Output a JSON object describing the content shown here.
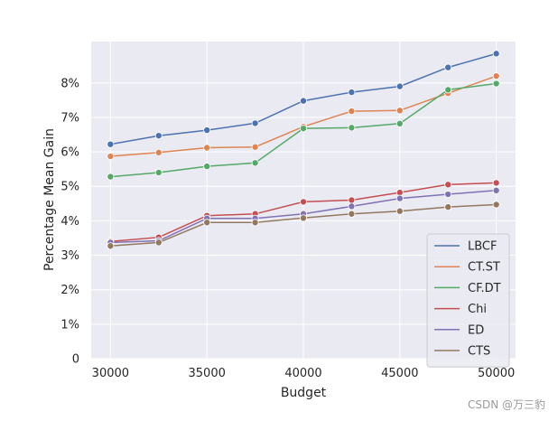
{
  "chart_data": {
    "type": "line",
    "xlabel": "Budget",
    "ylabel": "Percentage Mean Gain",
    "x": [
      30000,
      32500,
      35000,
      37500,
      40000,
      42500,
      45000,
      47500,
      50000
    ],
    "xticks": [
      "30000",
      "35000",
      "40000",
      "45000",
      "50000"
    ],
    "yticks": [
      "0",
      "1%",
      "2%",
      "3%",
      "4%",
      "5%",
      "6%",
      "7%",
      "8%"
    ],
    "xlim": [
      29000,
      51000
    ],
    "ylim": [
      0,
      9.2
    ],
    "grid": true,
    "legend_position": "lower-right",
    "series": [
      {
        "name": "LBCF",
        "color": "#4c72b0",
        "values": [
          6.22,
          6.47,
          6.63,
          6.83,
          7.48,
          7.73,
          7.9,
          8.45,
          8.85
        ]
      },
      {
        "name": "CT.ST",
        "color": "#dd8452",
        "values": [
          5.87,
          5.98,
          6.12,
          6.14,
          6.73,
          7.18,
          7.2,
          7.7,
          8.2
        ]
      },
      {
        "name": "CF.DT",
        "color": "#55a868",
        "values": [
          5.28,
          5.4,
          5.58,
          5.68,
          6.68,
          6.7,
          6.82,
          7.8,
          7.98
        ]
      },
      {
        "name": "Chi",
        "color": "#c44e52",
        "values": [
          3.4,
          3.52,
          4.15,
          4.2,
          4.55,
          4.6,
          4.82,
          5.05,
          5.1
        ]
      },
      {
        "name": "ED",
        "color": "#8172b3",
        "values": [
          3.37,
          3.42,
          4.07,
          4.07,
          4.2,
          4.42,
          4.65,
          4.77,
          4.88
        ]
      },
      {
        "name": "CTS",
        "color": "#937860",
        "values": [
          3.27,
          3.37,
          3.95,
          3.95,
          4.08,
          4.2,
          4.28,
          4.4,
          4.47
        ]
      }
    ]
  },
  "watermark": "CSDN @万三豹"
}
